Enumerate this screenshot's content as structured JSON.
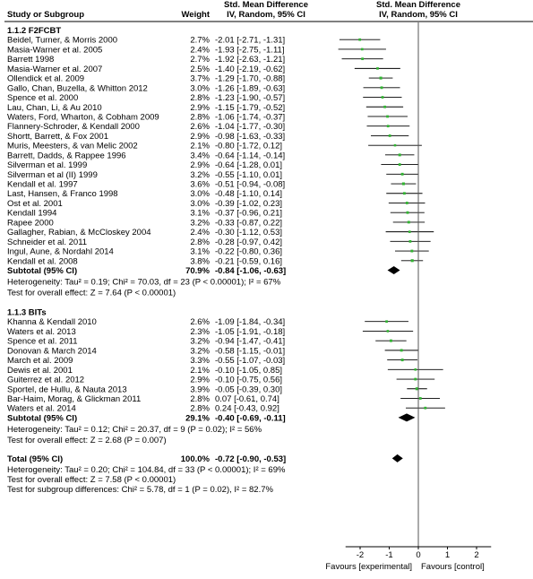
{
  "header": {
    "col_study": "Study or Subgroup",
    "col_weight": "Weight",
    "col_smd_title": "Std. Mean Difference",
    "col_smd_sub": "IV, Random, 95% CI",
    "plot_title": "Std. Mean Difference",
    "plot_sub": "IV, Random, 95% CI"
  },
  "groups": [
    {
      "title": "1.1.2 F2FCBT",
      "studies": [
        {
          "name": "Beidel, Turner, & Morris 2000",
          "weight": "2.7%",
          "ci_text": "-2.01 [-2.71, -1.31]",
          "est": -2.01,
          "lo": -2.71,
          "hi": -1.31
        },
        {
          "name": "Masia-Warner et al. 2005",
          "weight": "2.4%",
          "ci_text": "-1.93 [-2.75, -1.11]",
          "est": -1.93,
          "lo": -2.75,
          "hi": -1.11
        },
        {
          "name": "Barrett 1998",
          "weight": "2.7%",
          "ci_text": "-1.92 [-2.63, -1.21]",
          "est": -1.92,
          "lo": -2.63,
          "hi": -1.21
        },
        {
          "name": "Masia-Warner et al. 2007",
          "weight": "2.5%",
          "ci_text": "-1.40 [-2.19, -0.62]",
          "est": -1.4,
          "lo": -2.19,
          "hi": -0.62
        },
        {
          "name": "Ollendick et al. 2009",
          "weight": "3.7%",
          "ci_text": "-1.29 [-1.70, -0.88]",
          "est": -1.29,
          "lo": -1.7,
          "hi": -0.88
        },
        {
          "name": "Gallo, Chan, Buzella, & Whitton 2012",
          "weight": "3.0%",
          "ci_text": "-1.26 [-1.89, -0.63]",
          "est": -1.26,
          "lo": -1.89,
          "hi": -0.63
        },
        {
          "name": "Spence et al. 2000",
          "weight": "2.8%",
          "ci_text": "-1.23 [-1.90, -0.57]",
          "est": -1.23,
          "lo": -1.9,
          "hi": -0.57
        },
        {
          "name": "Lau, Chan, Li, & Au 2010",
          "weight": "2.9%",
          "ci_text": "-1.15 [-1.79, -0.52]",
          "est": -1.15,
          "lo": -1.79,
          "hi": -0.52
        },
        {
          "name": "Waters, Ford, Wharton, & Cobham 2009",
          "weight": "2.8%",
          "ci_text": "-1.06 [-1.74, -0.37]",
          "est": -1.06,
          "lo": -1.74,
          "hi": -0.37
        },
        {
          "name": "Flannery-Schroder, & Kendall 2000",
          "weight": "2.6%",
          "ci_text": "-1.04 [-1.77, -0.30]",
          "est": -1.04,
          "lo": -1.77,
          "hi": -0.3
        },
        {
          "name": "Shortt, Barrett, & Fox 2001",
          "weight": "2.9%",
          "ci_text": "-0.98 [-1.63, -0.33]",
          "est": -0.98,
          "lo": -1.63,
          "hi": -0.33
        },
        {
          "name": "Muris, Meesters, & van Melic 2002",
          "weight": "2.1%",
          "ci_text": "-0.80 [-1.72, 0.12]",
          "est": -0.8,
          "lo": -1.72,
          "hi": 0.12
        },
        {
          "name": "Barrett, Dadds, & Rappee 1996",
          "weight": "3.4%",
          "ci_text": "-0.64 [-1.14, -0.14]",
          "est": -0.64,
          "lo": -1.14,
          "hi": -0.14
        },
        {
          "name": "Silverman et al. 1999",
          "weight": "2.9%",
          "ci_text": "-0.64 [-1.28, 0.01]",
          "est": -0.64,
          "lo": -1.28,
          "hi": 0.01
        },
        {
          "name": "Silverman et al (II) 1999",
          "weight": "3.2%",
          "ci_text": "-0.55 [-1.10, 0.01]",
          "est": -0.55,
          "lo": -1.1,
          "hi": 0.01
        },
        {
          "name": "Kendall et al. 1997",
          "weight": "3.6%",
          "ci_text": "-0.51 [-0.94, -0.08]",
          "est": -0.51,
          "lo": -0.94,
          "hi": -0.08
        },
        {
          "name": "Last, Hansen, & Franco 1998",
          "weight": "3.0%",
          "ci_text": "-0.48 [-1.10, 0.14]",
          "est": -0.48,
          "lo": -1.1,
          "hi": 0.14
        },
        {
          "name": "Ost et al. 2001",
          "weight": "3.0%",
          "ci_text": "-0.39 [-1.02, 0.23]",
          "est": -0.39,
          "lo": -1.02,
          "hi": 0.23
        },
        {
          "name": "Kendall 1994",
          "weight": "3.1%",
          "ci_text": "-0.37 [-0.96, 0.21]",
          "est": -0.37,
          "lo": -0.96,
          "hi": 0.21
        },
        {
          "name": "Rapee 2000",
          "weight": "3.2%",
          "ci_text": "-0.33 [-0.87, 0.22]",
          "est": -0.33,
          "lo": -0.87,
          "hi": 0.22
        },
        {
          "name": "Gallagher, Rabian, & McCloskey 2004",
          "weight": "2.4%",
          "ci_text": "-0.30 [-1.12, 0.53]",
          "est": -0.3,
          "lo": -1.12,
          "hi": 0.53
        },
        {
          "name": "Schneider et al. 2011",
          "weight": "2.8%",
          "ci_text": "-0.28 [-0.97, 0.42]",
          "est": -0.28,
          "lo": -0.97,
          "hi": 0.42
        },
        {
          "name": "Ingul, Aune, & Nordahl 2014",
          "weight": "3.1%",
          "ci_text": "-0.22 [-0.80, 0.36]",
          "est": -0.22,
          "lo": -0.8,
          "hi": 0.36
        },
        {
          "name": "Kendall et al. 2008",
          "weight": "3.8%",
          "ci_text": "-0.21 [-0.59, 0.16]",
          "est": -0.21,
          "lo": -0.59,
          "hi": 0.16
        }
      ],
      "subtotal": {
        "label": "Subtotal (95% CI)",
        "weight": "70.9%",
        "ci_text": "-0.84 [-1.06, -0.63]",
        "est": -0.84,
        "lo": -1.06,
        "hi": -0.63
      },
      "heterogeneity": "Heterogeneity: Tau² = 0.19; Chi² = 70.03, df = 23 (P < 0.00001); I² = 67%",
      "overall_effect": "Test for overall effect: Z = 7.64 (P < 0.00001)"
    },
    {
      "title": "1.1.3 BITs",
      "studies": [
        {
          "name": "Khanna & Kendall 2010",
          "weight": "2.6%",
          "ci_text": "-1.09 [-1.84, -0.34]",
          "est": -1.09,
          "lo": -1.84,
          "hi": -0.34
        },
        {
          "name": "Waters et al. 2013",
          "weight": "2.3%",
          "ci_text": "-1.05 [-1.91, -0.18]",
          "est": -1.05,
          "lo": -1.91,
          "hi": -0.18
        },
        {
          "name": "Spence et al. 2011",
          "weight": "3.2%",
          "ci_text": "-0.94 [-1.47, -0.41]",
          "est": -0.94,
          "lo": -1.47,
          "hi": -0.41
        },
        {
          "name": "Donovan & March 2014",
          "weight": "3.2%",
          "ci_text": "-0.58 [-1.15, -0.01]",
          "est": -0.58,
          "lo": -1.15,
          "hi": -0.01
        },
        {
          "name": "March et al. 2009",
          "weight": "3.3%",
          "ci_text": "-0.55 [-1.07, -0.03]",
          "est": -0.55,
          "lo": -1.07,
          "hi": -0.03
        },
        {
          "name": "Dewis et al. 2001",
          "weight": "2.1%",
          "ci_text": "-0.10 [-1.05, 0.85]",
          "est": -0.1,
          "lo": -1.05,
          "hi": 0.85
        },
        {
          "name": "Guiterrez et al. 2012",
          "weight": "2.9%",
          "ci_text": "-0.10 [-0.75, 0.56]",
          "est": -0.1,
          "lo": -0.75,
          "hi": 0.56
        },
        {
          "name": "Sportel, de Hullu, & Nauta 2013",
          "weight": "3.9%",
          "ci_text": "-0.05 [-0.39, 0.30]",
          "est": -0.05,
          "lo": -0.39,
          "hi": 0.3
        },
        {
          "name": "Bar-Haim, Morag, & Glickman 2011",
          "weight": "2.8%",
          "ci_text": "0.07 [-0.61, 0.74]",
          "est": 0.07,
          "lo": -0.61,
          "hi": 0.74
        },
        {
          "name": "Waters et al. 2014",
          "weight": "2.8%",
          "ci_text": "0.24 [-0.43, 0.92]",
          "est": 0.24,
          "lo": -0.43,
          "hi": 0.92
        }
      ],
      "subtotal": {
        "label": "Subtotal (95% CI)",
        "weight": "29.1%",
        "ci_text": "-0.40 [-0.69, -0.11]",
        "est": -0.4,
        "lo": -0.69,
        "hi": -0.11
      },
      "heterogeneity": "Heterogeneity: Tau² = 0.12; Chi² = 20.37, df = 9 (P = 0.02); I² = 56%",
      "overall_effect": "Test for overall effect: Z = 2.68 (P = 0.007)"
    }
  ],
  "total": {
    "label": "Total (95% CI)",
    "weight": "100.0%",
    "ci_text": "-0.72 [-0.90, -0.53]",
    "est": -0.72,
    "lo": -0.9,
    "hi": -0.53,
    "heterogeneity": "Heterogeneity: Tau² = 0.20; Chi² = 104.84, df = 33 (P < 0.00001); I² = 69%",
    "overall_effect": "Test for overall effect: Z = 7.58 (P < 0.00001)",
    "subgroup_test": "Test for subgroup differences: Chi² = 5.78, df = 1 (P = 0.02), I² = 82.7%"
  },
  "axis": {
    "ticks": [
      -2,
      -1,
      0,
      1,
      2
    ],
    "tick_labels": [
      "-2",
      "-1",
      "0",
      "1",
      "2"
    ],
    "favours_left": "Favours [experimental]",
    "favours_right": "Favours [control]"
  },
  "colors": {
    "study_marker": "#32b432",
    "summary_diamond": "#000000",
    "ci_line": "#000000",
    "header_rule": "#000000"
  },
  "chart_data": {
    "type": "forest",
    "xlim": [
      -2.5,
      2.5
    ],
    "reference_line": 0
  }
}
